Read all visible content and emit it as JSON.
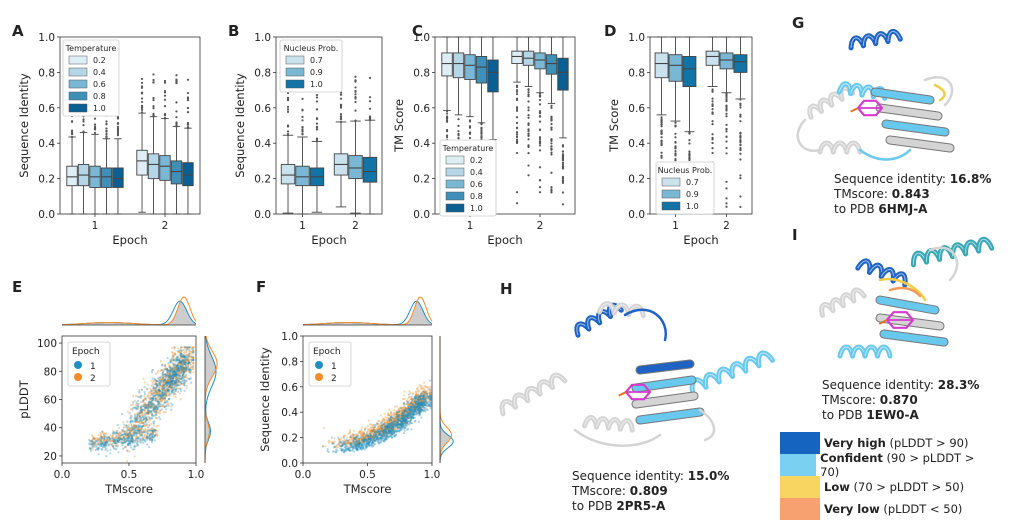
{
  "panel_letters": [
    "A",
    "B",
    "C",
    "D",
    "E",
    "F",
    "G",
    "H",
    "I"
  ],
  "colors": {
    "box_temps": [
      "#dfeef5",
      "#b5d6e7",
      "#7ab7d4",
      "#3f8fb9",
      "#0b5f93"
    ],
    "box_nucleus": [
      "#c9e2ee",
      "#7ab7d4",
      "#1173a6"
    ],
    "epoch1": "#1f8fc1",
    "epoch2": "#f28c28",
    "kde_fill": "#c8c8c8",
    "plddt": [
      "#1565c0",
      "#7ad0f0",
      "#f7d560",
      "#f7a070"
    ]
  },
  "chart_data": [
    {
      "panel": "A",
      "type": "box",
      "xlabel": "Epoch",
      "ylabel": "Sequence Identity",
      "categories": [
        "1",
        "2"
      ],
      "yticks": [
        "0.0",
        "0.2",
        "0.4",
        "0.6",
        "0.8",
        "1.0"
      ],
      "ylim": [
        0,
        1
      ],
      "legend_title": "Temperature",
      "legend_position": "top-left",
      "series": [
        {
          "name": "0.2",
          "boxes": [
            [
              0.16,
              0.21,
              0.27
            ],
            [
              0.22,
              0.3,
              0.36
            ]
          ]
        },
        {
          "name": "0.4",
          "boxes": [
            [
              0.16,
              0.22,
              0.28
            ],
            [
              0.2,
              0.28,
              0.34
            ]
          ]
        },
        {
          "name": "0.6",
          "boxes": [
            [
              0.15,
              0.21,
              0.27
            ],
            [
              0.19,
              0.27,
              0.33
            ]
          ]
        },
        {
          "name": "0.8",
          "boxes": [
            [
              0.15,
              0.21,
              0.26
            ],
            [
              0.17,
              0.24,
              0.3
            ]
          ]
        },
        {
          "name": "1.0",
          "boxes": [
            [
              0.15,
              0.2,
              0.26
            ],
            [
              0.16,
              0.22,
              0.29
            ]
          ]
        }
      ]
    },
    {
      "panel": "B",
      "type": "box",
      "xlabel": "Epoch",
      "ylabel": "Sequence Identity",
      "categories": [
        "1",
        "2"
      ],
      "yticks": [
        "0.0",
        "0.2",
        "0.4",
        "0.6",
        "0.8",
        "1.0"
      ],
      "ylim": [
        0,
        1
      ],
      "legend_title": "Nucleus Prob.",
      "legend_position": "top-left",
      "series": [
        {
          "name": "0.7",
          "boxes": [
            [
              0.17,
              0.22,
              0.28
            ],
            [
              0.22,
              0.28,
              0.34
            ]
          ]
        },
        {
          "name": "0.9",
          "boxes": [
            [
              0.16,
              0.21,
              0.27
            ],
            [
              0.2,
              0.26,
              0.33
            ]
          ]
        },
        {
          "name": "1.0",
          "boxes": [
            [
              0.16,
              0.21,
              0.26
            ],
            [
              0.18,
              0.24,
              0.32
            ]
          ]
        }
      ]
    },
    {
      "panel": "C",
      "type": "box",
      "xlabel": "Epoch",
      "ylabel": "TM Score",
      "categories": [
        "1",
        "2"
      ],
      "yticks": [
        "0.0",
        "0.2",
        "0.4",
        "0.6",
        "0.8",
        "1.0"
      ],
      "ylim": [
        0,
        1
      ],
      "legend_title": "Temperature",
      "legend_position": "bottom-left",
      "series": [
        {
          "name": "0.2",
          "boxes": [
            [
              0.78,
              0.85,
              0.91
            ],
            [
              0.85,
              0.89,
              0.92
            ]
          ]
        },
        {
          "name": "0.4",
          "boxes": [
            [
              0.77,
              0.85,
              0.91
            ],
            [
              0.84,
              0.88,
              0.92
            ]
          ]
        },
        {
          "name": "0.6",
          "boxes": [
            [
              0.76,
              0.84,
              0.9
            ],
            [
              0.82,
              0.87,
              0.91
            ]
          ]
        },
        {
          "name": "0.8",
          "boxes": [
            [
              0.74,
              0.83,
              0.89
            ],
            [
              0.79,
              0.85,
              0.9
            ]
          ]
        },
        {
          "name": "1.0",
          "boxes": [
            [
              0.69,
              0.8,
              0.87
            ],
            [
              0.7,
              0.8,
              0.88
            ]
          ]
        }
      ]
    },
    {
      "panel": "D",
      "type": "box",
      "xlabel": "Epoch",
      "ylabel": "TM Score",
      "categories": [
        "1",
        "2"
      ],
      "yticks": [
        "0.0",
        "0.2",
        "0.4",
        "0.6",
        "0.8",
        "1.0"
      ],
      "ylim": [
        0,
        1
      ],
      "legend_title": "Nucleus Prob.",
      "legend_position": "bottom-left",
      "series": [
        {
          "name": "0.7",
          "boxes": [
            [
              0.77,
              0.85,
              0.91
            ],
            [
              0.84,
              0.89,
              0.92
            ]
          ]
        },
        {
          "name": "0.9",
          "boxes": [
            [
              0.75,
              0.84,
              0.9
            ],
            [
              0.82,
              0.87,
              0.91
            ]
          ]
        },
        {
          "name": "1.0",
          "boxes": [
            [
              0.72,
              0.82,
              0.89
            ],
            [
              0.8,
              0.86,
              0.9
            ]
          ]
        }
      ]
    },
    {
      "panel": "E",
      "type": "scatter",
      "xlabel": "TMscore",
      "ylabel": "pLDDT",
      "xticks": [
        "0.0",
        "0.5",
        "1.0"
      ],
      "yticks": [
        "20",
        "40",
        "60",
        "80",
        "100"
      ],
      "xlim": [
        0,
        1
      ],
      "ylim": [
        15,
        105
      ],
      "legend_title": "Epoch",
      "legend_position": "top-left",
      "series": [
        {
          "name": "1"
        },
        {
          "name": "2"
        }
      ]
    },
    {
      "panel": "F",
      "type": "scatter",
      "xlabel": "TMscore",
      "ylabel": "Sequence Identity",
      "xticks": [
        "0.0",
        "0.5",
        "1.0"
      ],
      "yticks": [
        "0.0",
        "0.2",
        "0.4",
        "0.6",
        "0.8",
        "1.0"
      ],
      "xlim": [
        0,
        1
      ],
      "ylim": [
        0,
        1
      ],
      "legend_title": "Epoch",
      "legend_position": "top-left",
      "series": [
        {
          "name": "1"
        },
        {
          "name": "2"
        }
      ]
    }
  ],
  "structures": [
    {
      "panel": "G",
      "seq_label": "Sequence identity: ",
      "seq_value": "16.8%",
      "tm_label": "TMscore: ",
      "tm_value": "0.843",
      "pdb_label": "to PDB ",
      "pdb_value": "6HMJ-A"
    },
    {
      "panel": "I",
      "seq_label": "Sequence identity: ",
      "seq_value": "28.3%",
      "tm_label": "TMscore: ",
      "tm_value": "0.870",
      "pdb_label": "to PDB ",
      "pdb_value": "1EW0-A"
    },
    {
      "panel": "H",
      "seq_label": "Sequence identity: ",
      "seq_value": "15.0%",
      "tm_label": "TMscore: ",
      "tm_value": "0.809",
      "pdb_label": "to PDB ",
      "pdb_value": "2PR5-A"
    }
  ],
  "plddt_legend": [
    {
      "bold": "Very high",
      "rest": " (pLDDT > 90)"
    },
    {
      "bold": "Confident",
      "rest": " (90 > pLDDT > 70)"
    },
    {
      "bold": "Low",
      "rest": " (70 > pLDDT > 50)"
    },
    {
      "bold": "Very low",
      "rest": " (pLDDT < 50)"
    }
  ]
}
